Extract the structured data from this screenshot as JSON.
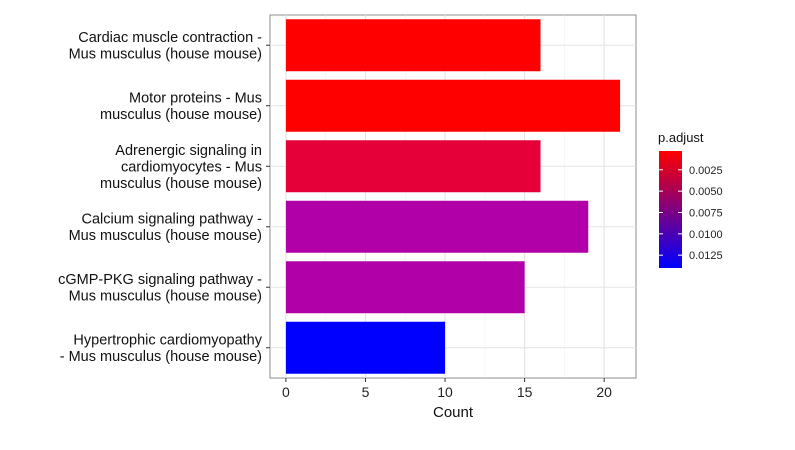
{
  "chart_data": {
    "type": "bar",
    "orientation": "horizontal",
    "title": "",
    "xlabel": "Count",
    "ylabel": "",
    "xlim": [
      -1,
      22
    ],
    "x_ticks": [
      "0",
      "5",
      "10",
      "15",
      "20"
    ],
    "grid": true,
    "legend_position": "right",
    "categories": [
      [
        "Cardiac muscle contraction -",
        "Mus musculus (house mouse)"
      ],
      [
        "Motor proteins - Mus",
        "musculus (house mouse)"
      ],
      [
        "Adrenergic signaling in",
        "cardiomyocytes - Mus",
        "musculus (house mouse)"
      ],
      [
        "Calcium signaling pathway -",
        "Mus musculus (house mouse)"
      ],
      [
        "cGMP-PKG signaling pathway -",
        "Mus musculus (house mouse)"
      ],
      [
        "Hypertrophic cardiomyopathy",
        "- Mus musculus (house mouse)"
      ]
    ],
    "values": [
      16,
      21,
      16,
      19,
      15,
      10
    ],
    "p_adjust": [
      0.0003,
      0.0003,
      0.0018,
      0.0072,
      0.0072,
      0.014
    ],
    "bar_colors": [
      "#ff0000",
      "#ff0000",
      "#e6003a",
      "#b200a8",
      "#b200a8",
      "#0000ff"
    ],
    "legend": {
      "title": "p.adjust",
      "ticks": [
        "0.0025",
        "0.0050",
        "0.0075",
        "0.0100",
        "0.0125"
      ],
      "tick_values": [
        0.0025,
        0.005,
        0.0075,
        0.01,
        0.0125
      ],
      "range": [
        0.0003,
        0.014
      ],
      "color_low": "#ff0000",
      "color_high": "#0000ff"
    }
  }
}
